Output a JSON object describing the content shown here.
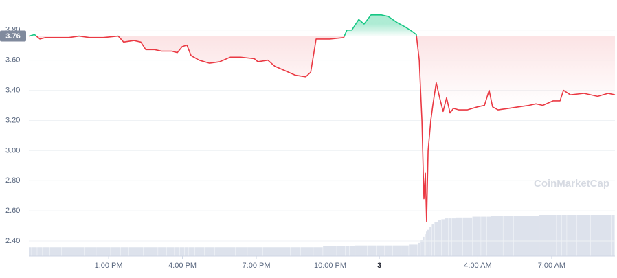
{
  "chart_data": {
    "type": "line",
    "watermark": "CoinMarketCap",
    "baseline": 3.76,
    "baseline_label": "3.76",
    "xlim": [
      9.76,
      33.57
    ],
    "xticks": [
      {
        "value": 13,
        "label": "1:00 PM"
      },
      {
        "value": 16,
        "label": "4:00 PM"
      },
      {
        "value": 19,
        "label": "7:00 PM"
      },
      {
        "value": 22,
        "label": "10:00 PM"
      },
      {
        "value": 24,
        "label": "3"
      },
      {
        "value": 28,
        "label": "4:00 AM"
      },
      {
        "value": 31,
        "label": "7:00 AM"
      }
    ],
    "ylim": [
      2.3,
      3.84
    ],
    "yticks": [
      {
        "value": 2.4,
        "label": "2.40"
      },
      {
        "value": 2.6,
        "label": "2.60"
      },
      {
        "value": 2.8,
        "label": "2.80"
      },
      {
        "value": 3.0,
        "label": "3.00"
      },
      {
        "value": 3.2,
        "label": "3.20"
      },
      {
        "value": 3.4,
        "label": "3.40"
      },
      {
        "value": 3.6,
        "label": "3.60"
      },
      {
        "value": 3.8,
        "label": "3.80"
      }
    ],
    "grid": true,
    "up_color": "#16c784",
    "down_color": "#ea3943",
    "volume_color": "#cfd6e4",
    "x": [
      9.76,
      9.99,
      10.21,
      10.43,
      10.82,
      11.38,
      11.8,
      12.22,
      12.78,
      13.39,
      13.61,
      14.03,
      14.31,
      14.51,
      14.87,
      15.15,
      15.57,
      15.79,
      15.99,
      16.18,
      16.35,
      16.68,
      17.1,
      17.52,
      17.94,
      18.36,
      18.92,
      19.06,
      19.47,
      19.75,
      20.17,
      20.59,
      21.01,
      21.21,
      21.43,
      21.99,
      22.55,
      22.68,
      22.88,
      23.16,
      23.38,
      23.66,
      24.08,
      24.36,
      24.72,
      25.06,
      25.34,
      25.5,
      25.62,
      25.73,
      25.81,
      25.87,
      25.92,
      25.98,
      26.09,
      26.17,
      26.31,
      26.45,
      26.59,
      26.73,
      26.87,
      27.01,
      27.23,
      27.57,
      27.99,
      28.27,
      28.46,
      28.6,
      28.82,
      29.24,
      29.66,
      30.08,
      30.36,
      30.64,
      31.06,
      31.34,
      31.48,
      31.76,
      32.31,
      32.87,
      33.29,
      33.57
    ],
    "series": [
      {
        "name": "Price",
        "values": [
          3.76,
          3.77,
          3.74,
          3.75,
          3.75,
          3.75,
          3.76,
          3.75,
          3.75,
          3.76,
          3.72,
          3.73,
          3.72,
          3.67,
          3.67,
          3.66,
          3.66,
          3.65,
          3.69,
          3.7,
          3.63,
          3.6,
          3.58,
          3.59,
          3.62,
          3.62,
          3.61,
          3.59,
          3.6,
          3.56,
          3.53,
          3.5,
          3.49,
          3.52,
          3.74,
          3.74,
          3.75,
          3.8,
          3.8,
          3.87,
          3.84,
          3.9,
          3.9,
          3.89,
          3.85,
          3.82,
          3.79,
          3.77,
          3.6,
          3.2,
          2.68,
          2.85,
          2.53,
          3.0,
          3.2,
          3.3,
          3.45,
          3.35,
          3.26,
          3.35,
          3.25,
          3.28,
          3.27,
          3.27,
          3.29,
          3.3,
          3.4,
          3.29,
          3.27,
          3.28,
          3.29,
          3.3,
          3.31,
          3.3,
          3.33,
          3.33,
          3.4,
          3.37,
          3.38,
          3.36,
          3.38,
          3.37
        ]
      },
      {
        "name": "Volume",
        "values": [
          1.0,
          1.0,
          1.0,
          1.0,
          1.0,
          1.0,
          1.0,
          1.0,
          1.0,
          1.0,
          1.0,
          1.0,
          1.0,
          1.0,
          1.0,
          1.0,
          1.0,
          1.0,
          1.0,
          1.0,
          1.0,
          1.0,
          1.0,
          1.0,
          1.0,
          1.0,
          1.0,
          1.0,
          1.0,
          1.0,
          1.0,
          1.0,
          1.0,
          1.0,
          1.0,
          1.1,
          1.1,
          1.1,
          1.1,
          1.2,
          1.2,
          1.2,
          1.2,
          1.2,
          1.2,
          1.2,
          1.3,
          1.3,
          1.5,
          1.8,
          2.2,
          2.5,
          2.8,
          3.0,
          3.3,
          3.6,
          3.9,
          4.1,
          4.2,
          4.3,
          4.3,
          4.3,
          4.4,
          4.4,
          4.5,
          4.5,
          4.5,
          4.6,
          4.6,
          4.6,
          4.6,
          4.6,
          4.6,
          4.7,
          4.7,
          4.7,
          4.7,
          4.7,
          4.7,
          4.7,
          4.7,
          4.7
        ]
      }
    ]
  }
}
